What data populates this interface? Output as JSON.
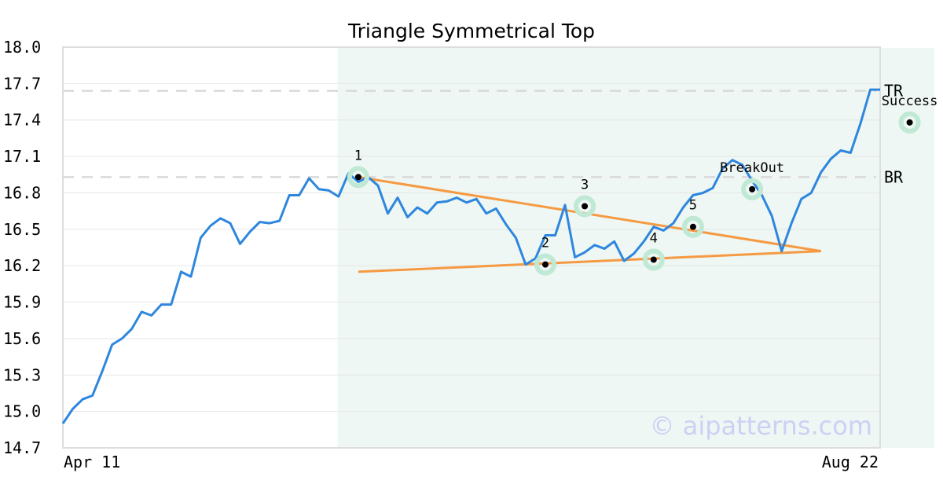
{
  "chart_data": {
    "type": "line",
    "title": "Triangle Symmetrical Top",
    "x_start_label": "Apr 11",
    "x_end_label": "Aug 22",
    "ylim": [
      14.7,
      18.0
    ],
    "y_ticks": [
      "14.7",
      "15.0",
      "15.3",
      "15.6",
      "15.9",
      "16.2",
      "16.5",
      "16.8",
      "17.1",
      "17.4",
      "17.7",
      "18.0"
    ],
    "grid": true,
    "highlight_range": [
      27.9,
      88.5
    ],
    "series": [
      {
        "values": [
          14.9,
          15.02,
          15.1,
          15.13,
          15.33,
          15.55,
          15.6,
          15.68,
          15.82,
          15.79,
          15.88,
          15.88,
          16.15,
          16.11,
          16.43,
          16.53,
          16.59,
          16.55,
          16.38,
          16.48,
          16.56,
          16.55,
          16.57,
          16.78,
          16.78,
          16.92,
          16.83,
          16.82,
          16.77,
          16.96,
          16.89,
          16.93,
          16.86,
          16.63,
          16.76,
          16.6,
          16.68,
          16.63,
          16.72,
          16.73,
          16.76,
          16.72,
          16.75,
          16.63,
          16.67,
          16.54,
          16.43,
          16.21,
          16.26,
          16.45,
          16.45,
          16.7,
          16.27,
          16.31,
          16.37,
          16.34,
          16.4,
          16.24,
          16.3,
          16.4,
          16.52,
          16.49,
          16.55,
          16.68,
          16.78,
          16.8,
          16.84,
          17.0,
          17.07,
          17.03,
          16.9,
          16.78,
          16.61,
          16.32,
          16.55,
          16.75,
          16.8,
          16.97,
          17.08,
          17.15,
          17.13,
          17.37,
          17.65,
          17.65
        ]
      }
    ],
    "reference_lines": [
      {
        "label": "TR",
        "value": 17.64
      },
      {
        "label": "BR",
        "value": 16.93
      }
    ],
    "trendlines": [
      {
        "from": [
          30,
          16.93
        ],
        "to": [
          77,
          16.32
        ]
      },
      {
        "from": [
          30,
          16.15
        ],
        "to": [
          77,
          16.32
        ]
      }
    ],
    "markers": [
      {
        "label": "1",
        "x": 30,
        "y": 16.93,
        "label_pos": "above"
      },
      {
        "label": "2",
        "x": 49,
        "y": 16.21,
        "label_pos": "above"
      },
      {
        "label": "3",
        "x": 53,
        "y": 16.69,
        "label_pos": "above"
      },
      {
        "label": "4",
        "x": 60,
        "y": 16.25,
        "label_pos": "above"
      },
      {
        "label": "5",
        "x": 64,
        "y": 16.52,
        "label_pos": "above"
      },
      {
        "label": "BreakOut",
        "x": 70,
        "y": 16.83,
        "label_pos": "above"
      },
      {
        "label": "Success",
        "x": 86,
        "y": 17.38,
        "label_pos": "above"
      }
    ],
    "watermark": "© aipatterns.com",
    "colors": {
      "line": "#2e86de",
      "trendline": "#f59a42",
      "highlight": "#eef7f3",
      "marker_halo": "#bfe9d4",
      "refline": "#d9d9d9",
      "grid": "#e6e6e6",
      "frame": "#dddddd",
      "watermark": "#cfcff5"
    }
  }
}
